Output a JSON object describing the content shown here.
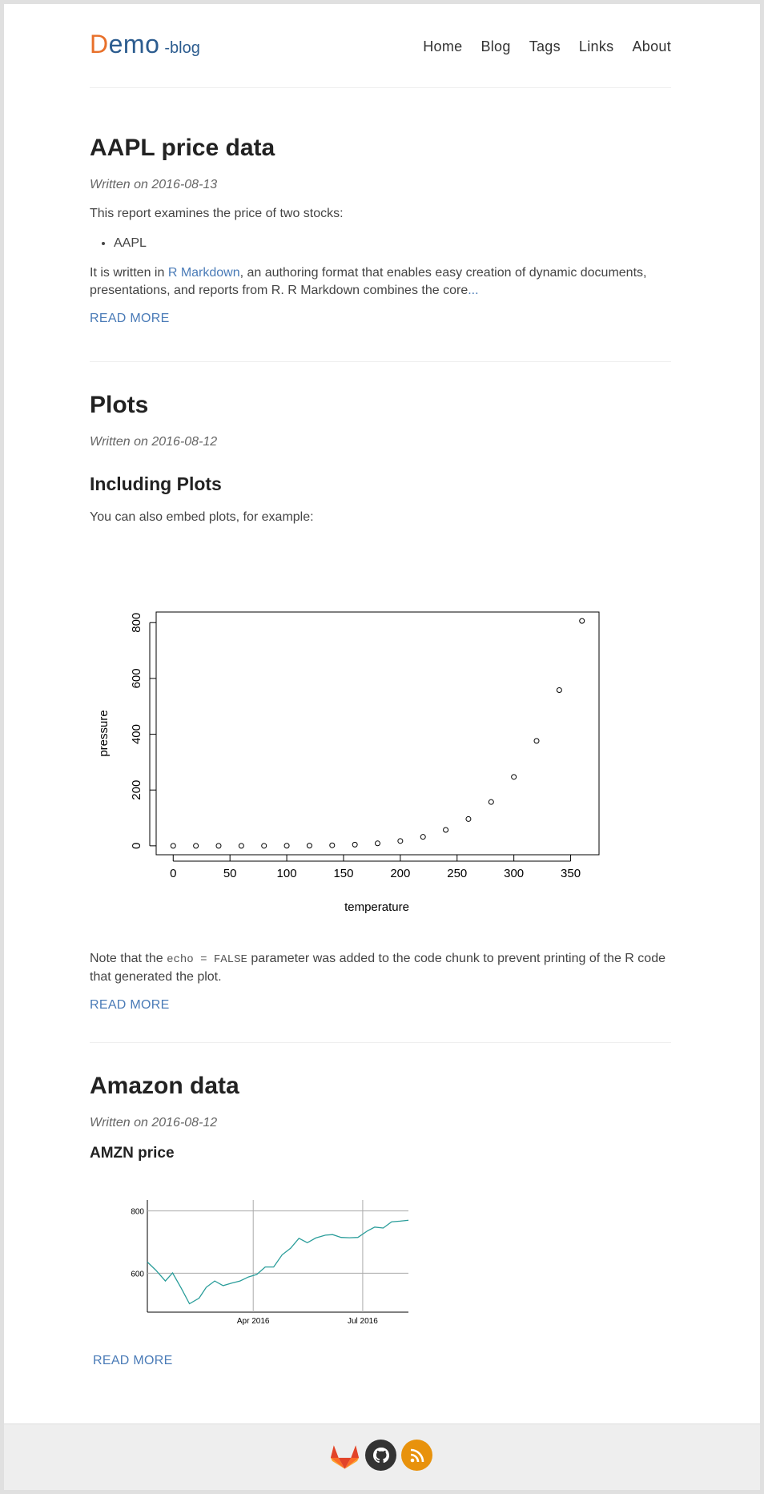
{
  "header": {
    "logo_first": "D",
    "logo_rest": "emo",
    "logo_sub": "-blog",
    "nav": [
      "Home",
      "Blog",
      "Tags",
      "Links",
      "About"
    ]
  },
  "posts": [
    {
      "title": "AAPL price data",
      "date": "Written on 2016-08-13",
      "intro": "This report examines the price of two stocks:",
      "list": [
        "AAPL"
      ],
      "body_pre": "It is written in ",
      "body_link": "R Markdown",
      "body_post": ", an authoring format that enables easy creation of dynamic documents, presentations, and reports from R. R Markdown combines the core",
      "ellipsis": "...",
      "read_more": "READ MORE"
    },
    {
      "title": "Plots",
      "date": "Written on 2016-08-12",
      "subtitle": "Including Plots",
      "intro": "You can also embed plots, for example:",
      "note_pre": "Note that the ",
      "note_code": "echo = FALSE",
      "note_post": " parameter was added to the code chunk to prevent printing of the R code that generated the plot.",
      "read_more": "READ MORE"
    },
    {
      "title": "Amazon data",
      "date": "Written on 2016-08-12",
      "subtitle": "AMZN price",
      "read_more": "READ MORE"
    }
  ],
  "footer": {
    "icons": [
      "gitlab-icon",
      "github-icon",
      "rss-icon"
    ],
    "colors": {
      "gitlab": "#e24329",
      "github": "#333333",
      "rss": "#e8920c"
    }
  },
  "chart_data": [
    {
      "type": "scatter",
      "title": "",
      "xlabel": "temperature",
      "ylabel": "pressure",
      "x": [
        0,
        20,
        40,
        60,
        80,
        100,
        120,
        140,
        160,
        180,
        200,
        220,
        240,
        260,
        280,
        300,
        320,
        340,
        360
      ],
      "y": [
        0.0002,
        0.0012,
        0.006,
        0.03,
        0.09,
        0.27,
        0.75,
        1.85,
        4.2,
        8.8,
        17.3,
        32.1,
        57,
        96,
        157,
        247,
        376,
        558,
        806
      ],
      "xticks": [
        0,
        50,
        100,
        150,
        200,
        250,
        300,
        350
      ],
      "yticks": [
        0,
        200,
        400,
        600,
        800
      ],
      "xlim": [
        -15,
        375
      ],
      "ylim": [
        -32,
        838
      ],
      "grid": false
    },
    {
      "type": "line",
      "title": "",
      "xlabel": "",
      "ylabel": "",
      "xticks": [
        "Apr 2016",
        "Jul 2016"
      ],
      "yticks": [
        600,
        800
      ],
      "ylim": [
        475,
        835
      ],
      "color": "#2a9d9a",
      "grid": true,
      "x": [
        "2016-01-04",
        "2016-01-11",
        "2016-01-19",
        "2016-01-25",
        "2016-02-01",
        "2016-02-08",
        "2016-02-16",
        "2016-02-22",
        "2016-02-29",
        "2016-03-07",
        "2016-03-14",
        "2016-03-21",
        "2016-03-28",
        "2016-04-04",
        "2016-04-11",
        "2016-04-18",
        "2016-04-25",
        "2016-05-02",
        "2016-05-09",
        "2016-05-16",
        "2016-05-23",
        "2016-05-31",
        "2016-06-06",
        "2016-06-13",
        "2016-06-20",
        "2016-06-27",
        "2016-07-05",
        "2016-07-11",
        "2016-07-18",
        "2016-07-25",
        "2016-08-01",
        "2016-08-08"
      ],
      "y": [
        636,
        610,
        575,
        601,
        553,
        502,
        520,
        555,
        575,
        560,
        568,
        575,
        588,
        596,
        620,
        620,
        659,
        680,
        712,
        698,
        713,
        722,
        724,
        715,
        714,
        715,
        736,
        748,
        745,
        765,
        767,
        770
      ]
    }
  ]
}
